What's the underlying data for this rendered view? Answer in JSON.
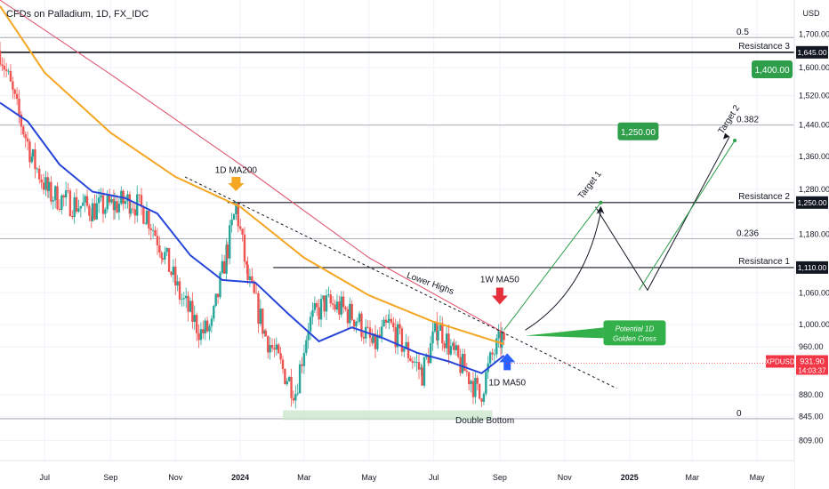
{
  "header": {
    "symbol_title": "CFDs on Palladium, 1D, FX_IDC",
    "currency": "USD"
  },
  "colors": {
    "up": "#26a69a",
    "down": "#ef5350",
    "ma200": "#f5a623",
    "ma50_1d": "#2745d8",
    "ma50_1w": "#e05a74",
    "price_badge": "#f23645",
    "dark_badge": "#131722",
    "target_green": "#2e9e4b",
    "support_zone": "#c8e6c9",
    "callout_green": "#33b04a"
  },
  "chart_data": {
    "type": "candlestick",
    "title": "CFDs on Palladium, 1D, FX_IDC",
    "x_tick_labels": [
      "Jul",
      "Sep",
      "Nov",
      "2024",
      "Mar",
      "May",
      "Jul",
      "Sep",
      "Nov",
      "2025",
      "Mar",
      "May"
    ],
    "x_tick_dates": [
      "2023-07-01",
      "2023-09-01",
      "2023-11-01",
      "2024-01-01",
      "2024-03-01",
      "2024-05-01",
      "2024-07-01",
      "2024-09-01",
      "2024-11-01",
      "2025-01-01",
      "2025-03-01",
      "2025-05-01"
    ],
    "x_range": [
      "2023-05-20",
      "2025-06-05"
    ],
    "y_scale": "log",
    "y_range": [
      780,
      1810
    ],
    "y_tick_labels": [
      "1,700.00",
      "1,600.00",
      "1,520.00",
      "1,440.00",
      "1,360.00",
      "1,280.00",
      "1,250.00",
      "1,180.00",
      "1,110.00",
      "1,060.00",
      "1,000.00",
      "960.00",
      "880.00",
      "845.00",
      "809.00"
    ],
    "y_tick_values": [
      1700,
      1600,
      1520,
      1440,
      1360,
      1280,
      1250,
      1180,
      1110,
      1060,
      1000,
      960,
      880,
      845,
      809
    ],
    "current_price": {
      "symbol": "XPDUSD",
      "value": "931.90",
      "countdown": "14:03:37",
      "price": 931.9
    },
    "candle_anchors": [
      [
        "2023-05-20",
        1650
      ],
      [
        "2023-06-05",
        1480
      ],
      [
        "2023-06-20",
        1350
      ],
      [
        "2023-07-05",
        1270
      ],
      [
        "2023-07-25",
        1250
      ],
      [
        "2023-08-15",
        1235
      ],
      [
        "2023-09-05",
        1245
      ],
      [
        "2023-09-20",
        1255
      ],
      [
        "2023-10-05",
        1225
      ],
      [
        "2023-10-20",
        1145
      ],
      [
        "2023-11-05",
        1055
      ],
      [
        "2023-11-25",
        985
      ],
      [
        "2023-12-05",
        995
      ],
      [
        "2023-12-20",
        1150
      ],
      [
        "2023-12-28",
        1240
      ],
      [
        "2024-01-08",
        1085
      ],
      [
        "2024-01-25",
        980
      ],
      [
        "2024-02-10",
        920
      ],
      [
        "2024-02-22",
        885
      ],
      [
        "2024-03-05",
        1000
      ],
      [
        "2024-03-20",
        1040
      ],
      [
        "2024-04-05",
        1030
      ],
      [
        "2024-04-20",
        1010
      ],
      [
        "2024-05-05",
        960
      ],
      [
        "2024-05-20",
        1000
      ],
      [
        "2024-06-05",
        955
      ],
      [
        "2024-06-20",
        915
      ],
      [
        "2024-07-05",
        1000
      ],
      [
        "2024-07-20",
        945
      ],
      [
        "2024-08-05",
        905
      ],
      [
        "2024-08-13",
        875
      ],
      [
        "2024-08-25",
        945
      ],
      [
        "2024-09-03",
        975
      ],
      [
        "2024-09-07",
        932
      ]
    ],
    "series": [
      {
        "name": "1D MA200",
        "color": "#f5a623",
        "points": [
          [
            "2023-05-20",
            1790
          ],
          [
            "2023-07-01",
            1585
          ],
          [
            "2023-09-01",
            1420
          ],
          [
            "2023-11-01",
            1310
          ],
          [
            "2024-01-01",
            1240
          ],
          [
            "2024-03-01",
            1130
          ],
          [
            "2024-05-01",
            1055
          ],
          [
            "2024-07-01",
            1005
          ],
          [
            "2024-09-05",
            965
          ]
        ]
      },
      {
        "name": "1D MA50",
        "color": "#2745d8",
        "points": [
          [
            "2023-05-20",
            1500
          ],
          [
            "2023-06-15",
            1450
          ],
          [
            "2023-07-15",
            1340
          ],
          [
            "2023-08-15",
            1275
          ],
          [
            "2023-09-15",
            1260
          ],
          [
            "2023-10-15",
            1225
          ],
          [
            "2023-11-15",
            1135
          ],
          [
            "2023-12-15",
            1085
          ],
          [
            "2024-01-15",
            1080
          ],
          [
            "2024-02-15",
            1020
          ],
          [
            "2024-03-15",
            970
          ],
          [
            "2024-04-15",
            995
          ],
          [
            "2024-05-15",
            975
          ],
          [
            "2024-06-15",
            950
          ],
          [
            "2024-07-15",
            935
          ],
          [
            "2024-08-15",
            915
          ],
          [
            "2024-09-05",
            945
          ]
        ]
      },
      {
        "name": "1W MA50",
        "color": "#e05a74",
        "points": [
          [
            "2023-05-20",
            1810
          ],
          [
            "2023-09-01",
            1580
          ],
          [
            "2024-01-01",
            1340
          ],
          [
            "2024-05-01",
            1130
          ],
          [
            "2024-09-05",
            985
          ]
        ]
      }
    ],
    "horizontal_levels": [
      {
        "label": "Resistance 3",
        "value": 1645,
        "badge": "1,645.00"
      },
      {
        "label": "Resistance 2",
        "value": 1250,
        "badge": "1,250.00"
      },
      {
        "label": "Resistance 1",
        "value": 1110,
        "badge": "1,110.00"
      }
    ],
    "fib_levels": [
      {
        "label": "0.5",
        "value": 1690
      },
      {
        "label": "0.382",
        "value": 1440
      },
      {
        "label": "0.236",
        "value": 1170
      },
      {
        "label": "0",
        "value": 842
      }
    ],
    "targets": [
      {
        "name": "Target 1",
        "value": 1250,
        "badge": "1,250.00",
        "from": [
          "2024-09-05",
          990
        ],
        "to": [
          "2024-12-05",
          1250
        ]
      },
      {
        "name": "Target 2",
        "value": 1400,
        "badge": "1,400.00",
        "from": [
          "2025-01-10",
          1065
        ],
        "to": [
          "2025-04-10",
          1400
        ]
      }
    ],
    "annotations": {
      "ma200_label": "1D MA200",
      "ma50_1w_label": "1W MA50",
      "ma50_1d_label": "1D MA50",
      "lower_highs": "Lower Highs",
      "double_bottom": "Double Bottom",
      "golden_cross_line1": "Potential 1D",
      "golden_cross_line2": "Golden Cross"
    },
    "support_zone": {
      "from": [
        "2024-02-10",
        855
      ],
      "to": [
        "2024-08-25",
        840
      ]
    },
    "lower_highs_line": {
      "from": [
        "2023-11-10",
        1310
      ],
      "to": [
        "2024-12-20",
        890
      ]
    },
    "projection_path": [
      [
        "2024-11-30",
        1240
      ],
      [
        "2025-01-18",
        1065
      ],
      [
        "2025-04-05",
        1410
      ]
    ],
    "projection_curve": {
      "from": [
        "2024-09-25",
        990
      ],
      "control": [
        "2024-11-20",
        1060
      ],
      "to": [
        "2024-12-05",
        1230
      ]
    }
  }
}
